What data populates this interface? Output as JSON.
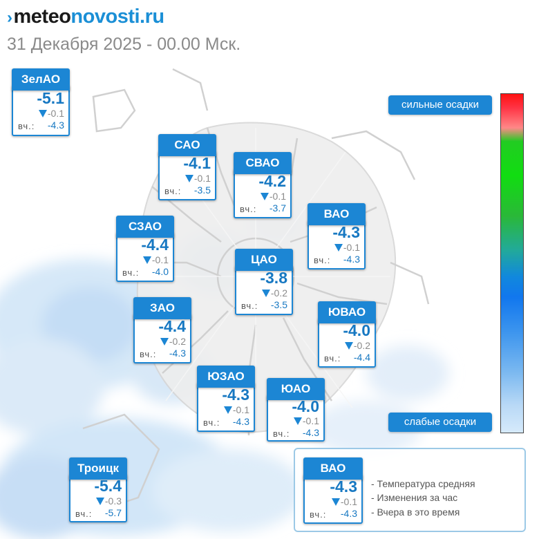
{
  "header": {
    "logo": {
      "mark": "›",
      "meteo": "meteo",
      "novosti": "novosti",
      "ru": ".ru"
    },
    "date": "31 Декабря 2025 - 00.00 Мск."
  },
  "districts": [
    {
      "name": "ЗелАО",
      "temp": "-5.1",
      "change": "-0.1",
      "yesterday_label": "вч.:",
      "yesterday": "-4.3"
    },
    {
      "name": "САО",
      "temp": "-4.1",
      "change": "-0.1",
      "yesterday_label": "вч.:",
      "yesterday": "-3.5"
    },
    {
      "name": "СВАО",
      "temp": "-4.2",
      "change": "-0.1",
      "yesterday_label": "вч.:",
      "yesterday": "-3.7"
    },
    {
      "name": "СЗАО",
      "temp": "-4.4",
      "change": "-0.1",
      "yesterday_label": "вч.:",
      "yesterday": "-4.0"
    },
    {
      "name": "ВАО",
      "temp": "-4.3",
      "change": "-0.1",
      "yesterday_label": "вч.:",
      "yesterday": "-4.3"
    },
    {
      "name": "ЦАО",
      "temp": "-3.8",
      "change": "-0.2",
      "yesterday_label": "вч.:",
      "yesterday": "-3.5"
    },
    {
      "name": "ЗАО",
      "temp": "-4.4",
      "change": "-0.2",
      "yesterday_label": "вч.:",
      "yesterday": "-4.3"
    },
    {
      "name": "ЮВАО",
      "temp": "-4.0",
      "change": "-0.2",
      "yesterday_label": "вч.:",
      "yesterday": "-4.4"
    },
    {
      "name": "ЮЗАО",
      "temp": "-4.3",
      "change": "-0.1",
      "yesterday_label": "вч.:",
      "yesterday": "-4.3"
    },
    {
      "name": "ЮАО",
      "temp": "-4.0",
      "change": "-0.1",
      "yesterday_label": "вч.:",
      "yesterday": "-4.3"
    },
    {
      "name": "Троицк",
      "temp": "-5.4",
      "change": "-0.3",
      "yesterday_label": "вч.:",
      "yesterday": "-5.7"
    }
  ],
  "scale": {
    "top_label": "сильные осадки",
    "bottom_label": "слабые осадки",
    "colors": [
      "#ff1111",
      "#ff8888",
      "#11dd11",
      "#22aa99",
      "#1177ee",
      "#7ab8f0",
      "#d6eafb"
    ]
  },
  "legend": {
    "sample": {
      "name": "ВАО",
      "temp": "-4.3",
      "change": "-0.1",
      "yesterday_label": "вч.:",
      "yesterday": "-4.3"
    },
    "items": [
      "- Температура средняя",
      "- Изменения за час",
      "- Вчера в это время"
    ]
  },
  "colors": {
    "accent": "#1c86d4",
    "value": "#1778c2",
    "muted": "#8a8a8a"
  },
  "icons": {
    "change": "triangle-down-icon",
    "logo_mark": "chevron-right-icon"
  }
}
